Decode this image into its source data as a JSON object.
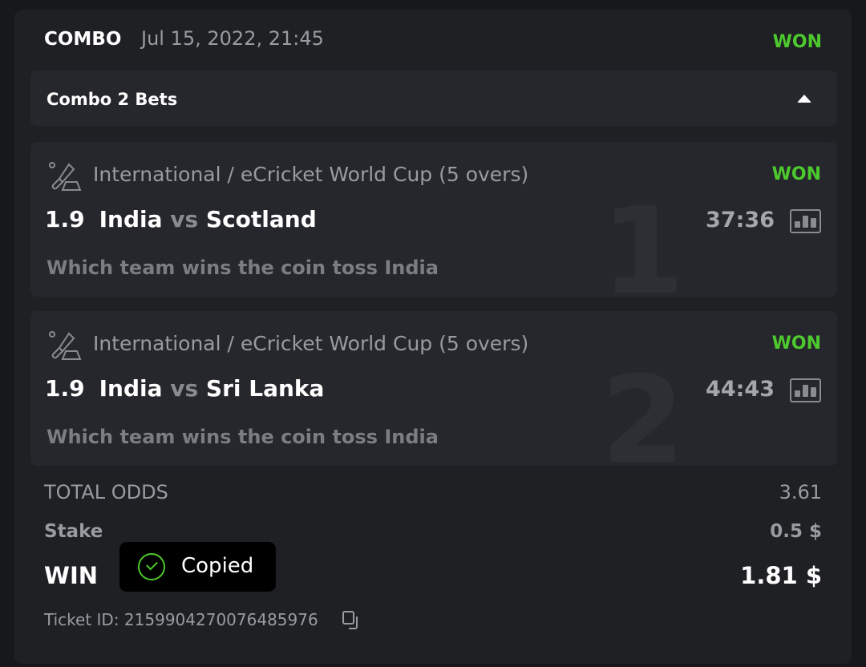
{
  "header": {
    "type": "COMBO",
    "date": "Jul 15, 2022, 21:45",
    "status": "WON"
  },
  "combo": {
    "label": "Combo 2 Bets",
    "caret": "caret-up-icon"
  },
  "bets": [
    {
      "index": "1",
      "league": "International / eCricket World Cup (5 overs)",
      "status": "WON",
      "odd": "1.9",
      "home": "India",
      "vs": "vs",
      "away": "Scotland",
      "time": "37:36",
      "market": "Which team wins the coin toss India"
    },
    {
      "index": "2",
      "league": "International / eCricket World Cup (5 overs)",
      "status": "WON",
      "odd": "1.9",
      "home": "India",
      "vs": "vs",
      "away": "Sri Lanka",
      "time": "44:43",
      "market": "Which team wins the coin toss India"
    }
  ],
  "summary": {
    "total_odds_label": "TOTAL ODDS",
    "total_odds": "3.61",
    "stake_label": "Stake",
    "stake": "0.5 $",
    "win_label": "WIN",
    "win": "1.81 $",
    "ticket_label": "Ticket ID: 2159904270076485976"
  },
  "toast": {
    "text": "Copied"
  },
  "colors": {
    "won": "#4dc92d",
    "background": "#1f2024",
    "panel": "#26272c"
  }
}
